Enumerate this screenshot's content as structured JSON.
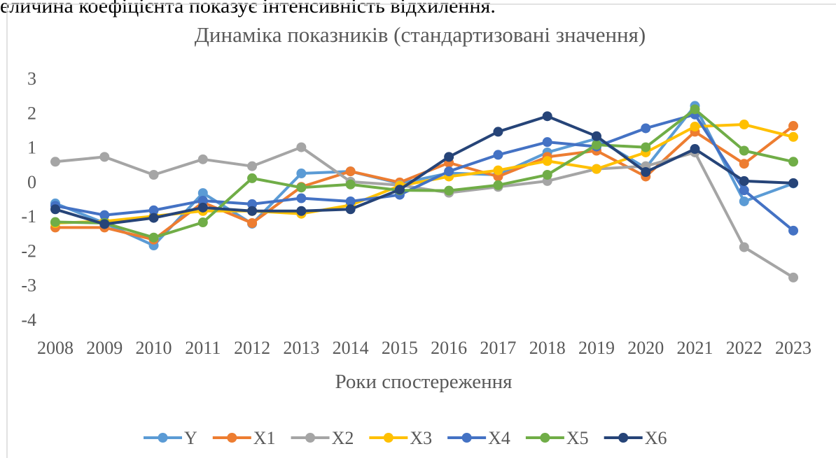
{
  "page_text": "еличина коефіцієнта показує інтенсивність відхилення.",
  "chart_data": {
    "type": "line",
    "title": "Динаміка показників (стандартизовані значення)",
    "x_label": "Роки спостереження",
    "categories": [
      "2008",
      "2009",
      "2010",
      "2011",
      "2012",
      "2013",
      "2014",
      "2015",
      "2016",
      "2017",
      "2018",
      "2019",
      "2020",
      "2021",
      "2022",
      "2023"
    ],
    "ylim": [
      -4,
      3
    ],
    "yticks": [
      3,
      2,
      1,
      0,
      -1,
      -2,
      -3,
      -4
    ],
    "grid": false,
    "legend": "bottom",
    "series": [
      {
        "name": "Y",
        "color": "#5B9BD5",
        "values": [
          -0.63,
          -1.2,
          -1.85,
          -0.33,
          -1.22,
          0.24,
          0.3,
          -0.05,
          0.25,
          0.2,
          0.85,
          1.25,
          0.4,
          2.2,
          -0.57,
          -0.05
        ]
      },
      {
        "name": "X1",
        "color": "#ED7D31",
        "values": [
          -1.33,
          -1.33,
          -1.68,
          -0.6,
          -1.2,
          -0.15,
          0.3,
          -0.02,
          0.55,
          0.15,
          0.72,
          0.9,
          0.15,
          1.45,
          0.52,
          1.62
        ]
      },
      {
        "name": "X2",
        "color": "#A5A5A5",
        "values": [
          0.58,
          0.72,
          0.2,
          0.65,
          0.45,
          1.0,
          0,
          -0.1,
          -0.32,
          -0.15,
          0.02,
          0.37,
          0.45,
          0.85,
          -1.9,
          -2.78
        ]
      },
      {
        "name": "X3",
        "color": "#FFC000",
        "values": [
          -1.2,
          -1.15,
          -1.0,
          -0.85,
          -0.85,
          -0.93,
          -0.68,
          -0.12,
          0.15,
          0.33,
          0.6,
          0.37,
          0.85,
          1.6,
          1.66,
          1.3
        ]
      },
      {
        "name": "X4",
        "color": "#4472C4",
        "values": [
          -0.7,
          -0.97,
          -0.83,
          -0.55,
          -0.65,
          -0.48,
          -0.57,
          -0.38,
          0.3,
          0.78,
          1.15,
          1.02,
          1.55,
          1.95,
          -0.25,
          -1.42
        ]
      },
      {
        "name": "X5",
        "color": "#70AD47",
        "values": [
          -1.17,
          -1.2,
          -1.62,
          -1.18,
          0.1,
          -0.17,
          -0.08,
          -0.25,
          -0.26,
          -0.1,
          0.2,
          1.07,
          1.0,
          2.1,
          0.9,
          0.58
        ]
      },
      {
        "name": "X6",
        "color": "#264478",
        "values": [
          -0.8,
          -1.23,
          -1.05,
          -0.75,
          -0.85,
          -0.85,
          -0.8,
          -0.23,
          0.72,
          1.45,
          1.9,
          1.32,
          0.28,
          0.95,
          0.02,
          -0.04
        ]
      }
    ]
  }
}
